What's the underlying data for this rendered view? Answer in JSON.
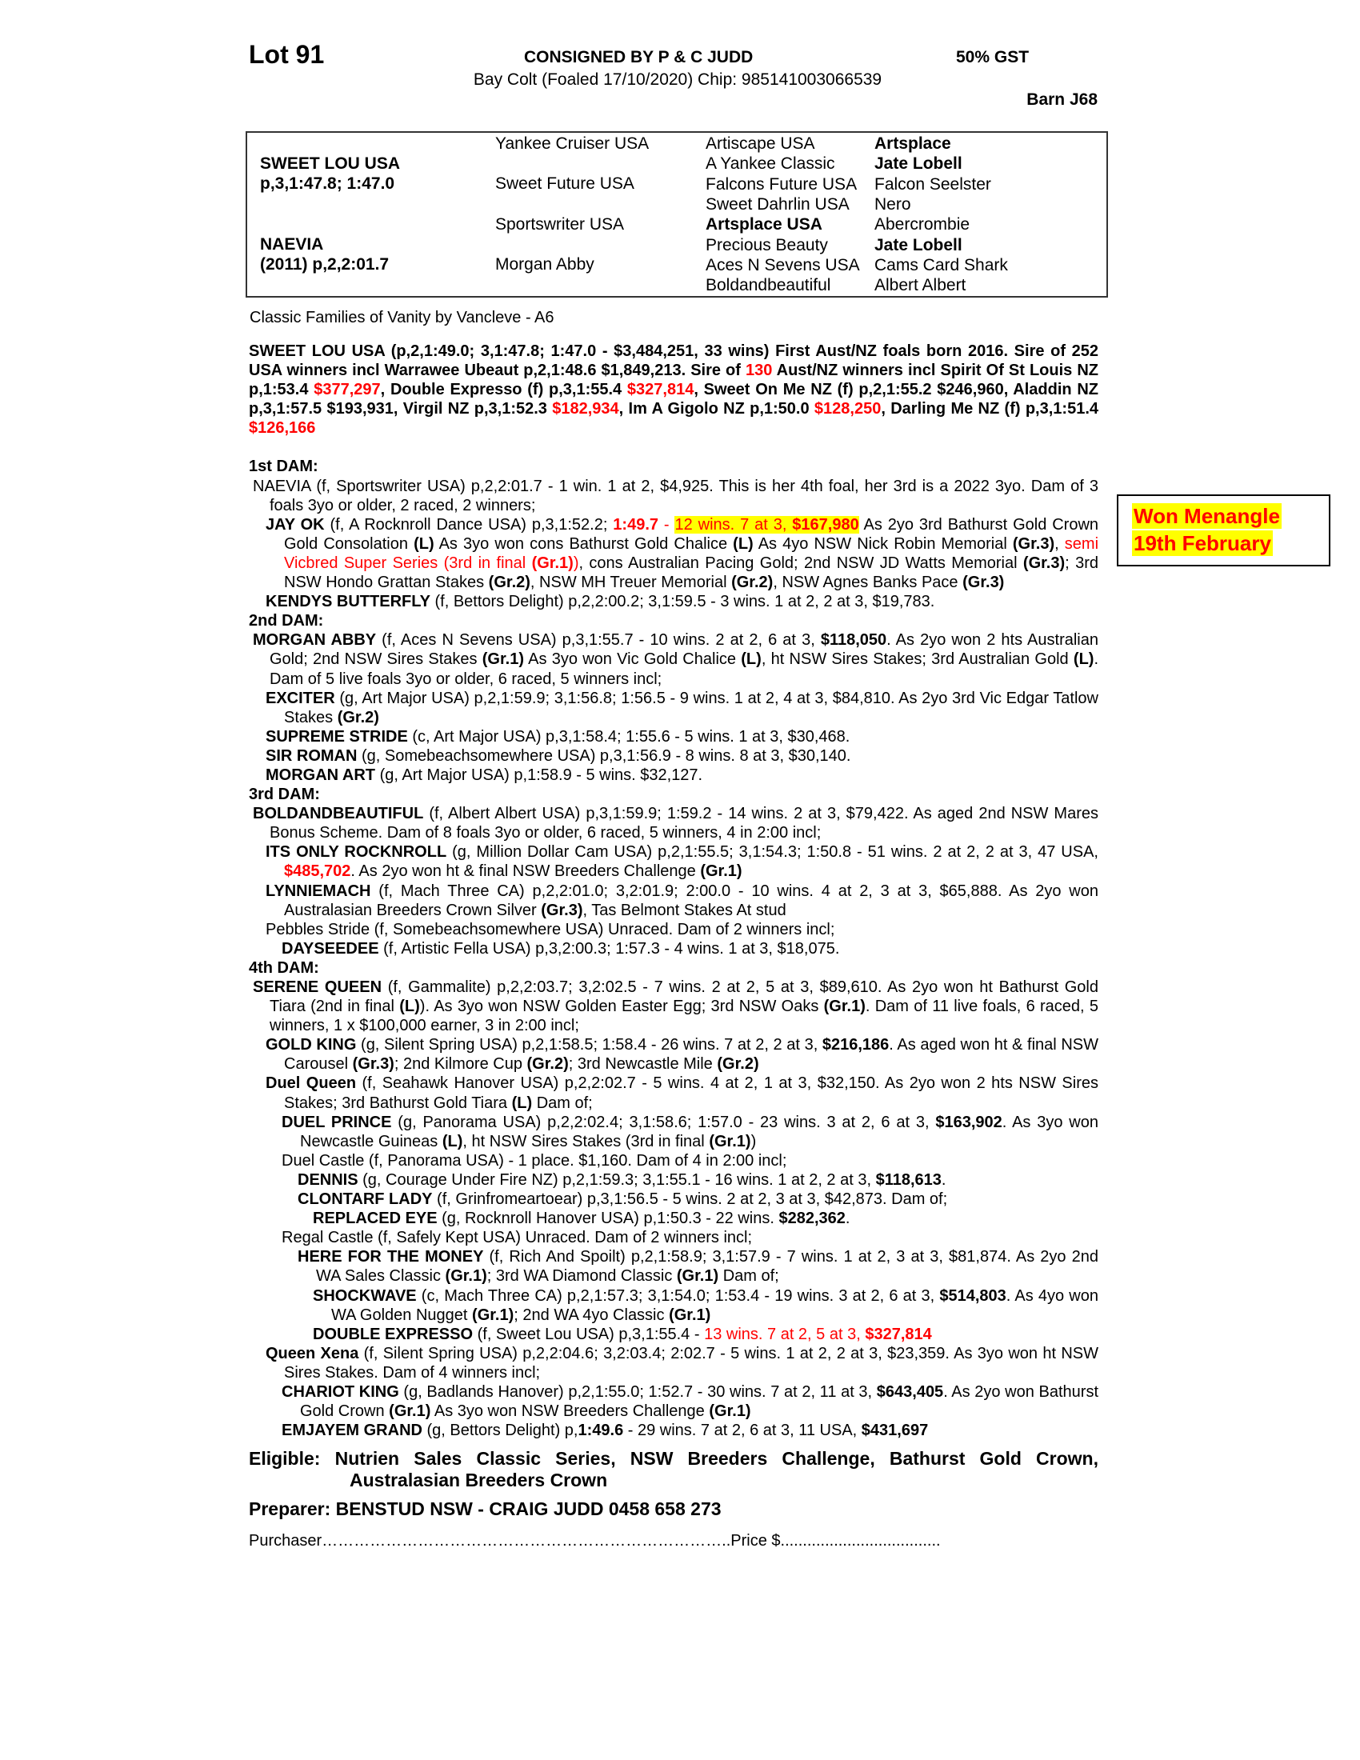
{
  "header": {
    "lot": "Lot 91",
    "consigned": "CONSIGNED BY P & C JUDD",
    "gst": "50% GST",
    "subtitle": "Bay Colt (Foaled 17/10/2020) Chip: 985141003066539",
    "barn": "Barn J68"
  },
  "pedigree": {
    "sire": {
      "name": "SWEET LOU USA",
      "record": "p,3,1:47.8; 1:47.0"
    },
    "dam": {
      "name": "NAEVIA",
      "record": "(2011) p,2,2:01.7"
    },
    "gen2": [
      "Yankee Cruiser USA",
      "Sweet Future USA",
      "Sportswriter USA",
      "Morgan Abby"
    ],
    "gen3": [
      {
        "t": "Artiscape USA",
        "b": false
      },
      {
        "t": "A Yankee Classic",
        "b": false
      },
      {
        "t": "Falcons Future USA",
        "b": false
      },
      {
        "t": "Sweet Dahrlin USA",
        "b": false
      },
      {
        "t": "Artsplace USA",
        "b": true
      },
      {
        "t": "Precious Beauty",
        "b": false
      },
      {
        "t": "Aces N Sevens USA",
        "b": false
      },
      {
        "t": "Boldandbeautiful",
        "b": false
      }
    ],
    "gen4": [
      {
        "t": "Artsplace",
        "b": true
      },
      {
        "t": "Jate Lobell",
        "b": true
      },
      {
        "t": "Falcon Seelster",
        "b": false
      },
      {
        "t": "Nero",
        "b": false
      },
      {
        "t": "Abercrombie",
        "b": false
      },
      {
        "t": "Jate Lobell",
        "b": true
      },
      {
        "t": "Cams Card Shark",
        "b": false
      },
      {
        "t": "Albert Albert",
        "b": false
      }
    ]
  },
  "family": "Classic Families of Vanity by Vancleve - A6",
  "sire_runs": [
    [
      "SWEET LOU USA (p,2,1:49.0; 3,1:47.8; 1:47.0 - $3,484,251, 33 wins) First Aust/NZ foals born 2016. Sire of 252 USA winners incl Warrawee Ubeaut p,2,1:48.6 $1,849,213. Sire of ",
      ""
    ],
    [
      "130",
      "r"
    ],
    [
      " Aust/NZ winners incl Spirit Of St Louis NZ p,1:53.4 ",
      ""
    ],
    [
      "$377,297",
      "r"
    ],
    [
      ", Double Expresso (f) p,3,1:55.4 ",
      ""
    ],
    [
      "$327,814",
      "r"
    ],
    [
      ", Sweet On Me NZ (f) p,2,1:55.2 $246,960, Aladdin NZ p,3,1:57.5 $193,931, Virgil NZ p,3,1:52.3 ",
      ""
    ],
    [
      "$182,934",
      "r"
    ],
    [
      ", Im A Gigolo NZ p,1:50.0 ",
      ""
    ],
    [
      "$128,250",
      "r"
    ],
    [
      ", Darling Me NZ (f) p,3,1:51.4 ",
      ""
    ],
    [
      "$126,166",
      "r"
    ]
  ],
  "dams": [
    {
      "heading": "1st DAM:",
      "entries": [
        {
          "level": 0,
          "runs": [
            [
              "NAEVIA (f, Sportswriter USA) p,2,2:01.7 - 1 win. 1 at 2, $4,925. This is her 4th foal, her 3rd is a 2022 3yo. Dam of 3 foals 3yo or older, 2 raced, 2 winners;",
              ""
            ]
          ]
        },
        {
          "level": 1,
          "runs": [
            [
              "JAY OK",
              "b"
            ],
            [
              " (f, A Rocknroll Dance USA) p,3,1:52.2; ",
              ""
            ],
            [
              "1:49.7",
              "rb"
            ],
            [
              " - ",
              "r"
            ],
            [
              "12 wins. 7 at 3, ",
              "hl"
            ],
            [
              "$167,980",
              "hlb"
            ],
            [
              " As 2yo 3rd Bathurst Gold Crown Gold Consolation ",
              ""
            ],
            [
              "(L)",
              "b"
            ],
            [
              " As 3yo won cons Bathurst Gold Chalice ",
              ""
            ],
            [
              "(L)",
              "b"
            ],
            [
              " As 4yo  NSW Nick Robin Memorial ",
              ""
            ],
            [
              "(Gr.3)",
              "b"
            ],
            [
              ", ",
              ""
            ],
            [
              "semi Vicbred Super Series (3rd in final ",
              "r"
            ],
            [
              "(Gr.1)",
              "rb"
            ],
            [
              ")",
              "r"
            ],
            [
              ", cons Australian Pacing Gold; 2nd NSW JD Watts Memorial ",
              ""
            ],
            [
              "(Gr.3)",
              "b"
            ],
            [
              "; 3rd NSW Hondo Grattan Stakes ",
              ""
            ],
            [
              "(Gr.2)",
              "b"
            ],
            [
              ", NSW MH Treuer Memorial ",
              ""
            ],
            [
              "(Gr.2)",
              "b"
            ],
            [
              ", NSW Agnes Banks Pace ",
              ""
            ],
            [
              "(Gr.3)",
              "b"
            ]
          ]
        },
        {
          "level": 1,
          "runs": [
            [
              "KENDYS BUTTERFLY",
              "b"
            ],
            [
              " (f, Bettors Delight) p,2,2:00.2; 3,1:59.5 - 3 wins. 1 at 2, 2 at 3, $19,783.",
              ""
            ]
          ]
        }
      ]
    },
    {
      "heading": "2nd DAM:",
      "entries": [
        {
          "level": 0,
          "runs": [
            [
              "MORGAN ABBY",
              "b"
            ],
            [
              " (f, Aces N Sevens USA) p,3,1:55.7 - 10 wins. 2 at 2, 6 at 3, ",
              ""
            ],
            [
              "$118,050",
              "b"
            ],
            [
              ". As 2yo won 2 hts Australian Gold; 2nd NSW Sires Stakes ",
              ""
            ],
            [
              "(Gr.1)",
              "b"
            ],
            [
              " As 3yo won Vic Gold Chalice ",
              ""
            ],
            [
              "(L)",
              "b"
            ],
            [
              ", ht NSW Sires Stakes; 3rd Australian Gold ",
              ""
            ],
            [
              "(L)",
              "b"
            ],
            [
              ". Dam of 5 live foals 3yo or older, 6 raced, 5 winners incl;",
              ""
            ]
          ]
        },
        {
          "level": 1,
          "runs": [
            [
              "EXCITER",
              "b"
            ],
            [
              " (g, Art Major USA) p,2,1:59.9; 3,1:56.8; 1:56.5 - 9 wins. 1 at 2, 4 at 3, $84,810. As 2yo 3rd Vic Edgar Tatlow Stakes ",
              ""
            ],
            [
              "(Gr.2)",
              "b"
            ]
          ]
        },
        {
          "level": 1,
          "runs": [
            [
              "SUPREME STRIDE",
              "b"
            ],
            [
              " (c, Art Major USA) p,3,1:58.4; 1:55.6 - 5 wins. 1 at 3, $30,468.",
              ""
            ]
          ]
        },
        {
          "level": 1,
          "runs": [
            [
              "SIR ROMAN",
              "b"
            ],
            [
              " (g, Somebeachsomewhere USA) p,3,1:56.9 - 8 wins. 8 at 3, $30,140.",
              ""
            ]
          ]
        },
        {
          "level": 1,
          "runs": [
            [
              "MORGAN ART",
              "b"
            ],
            [
              " (g, Art Major USA) p,1:58.9 - 5 wins. $32,127.",
              ""
            ]
          ]
        }
      ]
    },
    {
      "heading": "3rd DAM:",
      "entries": [
        {
          "level": 0,
          "runs": [
            [
              "BOLDANDBEAUTIFUL",
              "b"
            ],
            [
              " (f, Albert Albert USA) p,3,1:59.9; 1:59.2 - 14 wins. 2 at 3, $79,422. As aged 2nd NSW Mares Bonus Scheme. Dam of 8 foals 3yo or older, 6 raced, 5 winners, 4 in 2:00 incl;",
              ""
            ]
          ]
        },
        {
          "level": 1,
          "runs": [
            [
              "ITS ONLY ROCKNROLL",
              "b"
            ],
            [
              " (g, Million Dollar Cam USA) p,2,1:55.5; 3,1:54.3; 1:50.8 - 51 wins. 2 at 2, 2 at 3, 47 USA, ",
              ""
            ],
            [
              "$485,702",
              "rb"
            ],
            [
              ". As 2yo won ht & final NSW Breeders Challenge ",
              ""
            ],
            [
              "(Gr.1)",
              "b"
            ]
          ]
        },
        {
          "level": 1,
          "runs": [
            [
              "LYNNIEMACH",
              "b"
            ],
            [
              " (f, Mach Three CA) p,2,2:01.0; 3,2:01.9; 2:00.0 - 10 wins. 4 at 2, 3 at 3, $65,888. As 2yo won Australasian Breeders Crown Silver ",
              ""
            ],
            [
              "(Gr.3)",
              "b"
            ],
            [
              ", Tas Belmont Stakes At stud",
              ""
            ]
          ]
        },
        {
          "level": 1,
          "runs": [
            [
              "Pebbles Stride (f, Somebeachsomewhere USA) Unraced. Dam of 2 winners incl;",
              ""
            ]
          ]
        },
        {
          "level": 2,
          "runs": [
            [
              "DAYSEEDEE",
              "b"
            ],
            [
              " (f, Artistic Fella USA) p,3,2:00.3; 1:57.3 - 4 wins. 1 at 3, $18,075.",
              ""
            ]
          ]
        }
      ]
    },
    {
      "heading": "4th DAM:",
      "entries": [
        {
          "level": 0,
          "runs": [
            [
              "SERENE QUEEN",
              "b"
            ],
            [
              " (f, Gammalite) p,2,2:03.7; 3,2:02.5 - 7 wins. 2 at 2, 5 at 3, $89,610. As 2yo won ht Bathurst Gold Tiara (2nd in final ",
              ""
            ],
            [
              "(L)",
              "b"
            ],
            [
              "). As 3yo won NSW Golden Easter Egg; 3rd NSW Oaks ",
              ""
            ],
            [
              "(Gr.1)",
              "b"
            ],
            [
              ". Dam of 11 live foals, 6 raced, 5 winners, 1 x $100,000 earner, 3 in 2:00 incl;",
              ""
            ]
          ]
        },
        {
          "level": 1,
          "runs": [
            [
              "GOLD KING",
              "b"
            ],
            [
              " (g, Silent Spring USA) p,2,1:58.5; 1:58.4 - 26 wins. 7 at 2, 2 at 3, ",
              ""
            ],
            [
              "$216,186",
              "b"
            ],
            [
              ". As aged won ht & final NSW Carousel ",
              ""
            ],
            [
              "(Gr.3)",
              "b"
            ],
            [
              "; 2nd Kilmore Cup ",
              ""
            ],
            [
              "(Gr.2)",
              "b"
            ],
            [
              "; 3rd Newcastle Mile ",
              ""
            ],
            [
              "(Gr.2)",
              "b"
            ]
          ]
        },
        {
          "level": 1,
          "runs": [
            [
              "Duel Queen",
              "b"
            ],
            [
              " (f, Seahawk Hanover USA) p,2,2:02.7 - 5 wins. 4 at 2, 1 at 3, $32,150. As 2yo won 2 hts NSW Sires Stakes; 3rd Bathurst Gold Tiara ",
              ""
            ],
            [
              "(L)",
              "b"
            ],
            [
              " Dam of;",
              ""
            ]
          ]
        },
        {
          "level": 2,
          "runs": [
            [
              "DUEL PRINCE",
              "b"
            ],
            [
              " (g, Panorama USA) p,2,2:02.4; 3,1:58.6; 1:57.0 - 23 wins. 3 at 2, 6 at 3, ",
              ""
            ],
            [
              "$163,902",
              "b"
            ],
            [
              ". As 3yo won Newcastle Guineas ",
              ""
            ],
            [
              "(L)",
              "b"
            ],
            [
              ", ht NSW Sires Stakes (3rd in final ",
              ""
            ],
            [
              "(Gr.1)",
              "b"
            ],
            [
              ")",
              ""
            ]
          ]
        },
        {
          "level": 2,
          "runs": [
            [
              "Duel Castle (f, Panorama USA) - 1 place. $1,160. Dam of 4 in 2:00 incl;",
              ""
            ]
          ]
        },
        {
          "level": 3,
          "runs": [
            [
              "DENNIS",
              "b"
            ],
            [
              " (g, Courage Under Fire NZ) p,2,1:59.3; 3,1:55.1 - 16 wins. 1 at 2, 2 at 3, ",
              ""
            ],
            [
              "$118,613",
              "b"
            ],
            [
              ".",
              ""
            ]
          ]
        },
        {
          "level": 3,
          "runs": [
            [
              "CLONTARF LADY",
              "b"
            ],
            [
              " (f, Grinfromeartoear) p,3,1:56.5 - 5 wins. 2 at 2, 3 at 3, $42,873. Dam of;",
              ""
            ]
          ]
        },
        {
          "level": 4,
          "runs": [
            [
              "REPLACED EYE",
              "b"
            ],
            [
              " (g, Rocknroll Hanover USA) p,1:50.3 - 22 wins. ",
              ""
            ],
            [
              "$282,362",
              "b"
            ],
            [
              ".",
              ""
            ]
          ]
        },
        {
          "level": 2,
          "runs": [
            [
              "Regal Castle (f, Safely Kept USA) Unraced. Dam of 2 winners incl;",
              ""
            ]
          ]
        },
        {
          "level": 3,
          "runs": [
            [
              "HERE FOR THE MONEY",
              "b"
            ],
            [
              " (f, Rich And Spoilt) p,2,1:58.9; 3,1:57.9 - 7 wins. 1 at 2, 3 at 3, $81,874. As 2yo 2nd WA Sales Classic ",
              ""
            ],
            [
              "(Gr.1)",
              "b"
            ],
            [
              "; 3rd WA Diamond Classic ",
              ""
            ],
            [
              "(Gr.1)",
              "b"
            ],
            [
              " Dam of;",
              ""
            ]
          ]
        },
        {
          "level": 4,
          "runs": [
            [
              "SHOCKWAVE",
              "b"
            ],
            [
              " (c, Mach Three CA) p,2,1:57.3; 3,1:54.0; 1:53.4 - 19 wins. 3 at 2, 6 at 3, ",
              ""
            ],
            [
              "$514,803",
              "b"
            ],
            [
              ". As 4yo won WA Golden Nugget ",
              ""
            ],
            [
              "(Gr.1)",
              "b"
            ],
            [
              "; 2nd WA 4yo Classic ",
              ""
            ],
            [
              "(Gr.1)",
              "b"
            ]
          ]
        },
        {
          "level": 4,
          "runs": [
            [
              "DOUBLE EXPRESSO",
              "b"
            ],
            [
              " (f, Sweet Lou USA) p,3,1:55.4 - ",
              ""
            ],
            [
              "13 wins. 7 at 2, 5 at 3, ",
              "r"
            ],
            [
              "$327,814",
              "rb"
            ]
          ]
        },
        {
          "level": 1,
          "runs": [
            [
              "Queen Xena",
              "b"
            ],
            [
              " (f, Silent Spring USA) p,2,2:04.6; 3,2:03.4; 2:02.7 - 5 wins. 1 at 2, 2 at 3, $23,359. As 3yo won ht NSW Sires Stakes. Dam of 4 winners incl;",
              ""
            ]
          ]
        },
        {
          "level": 2,
          "runs": [
            [
              "CHARIOT KING",
              "b"
            ],
            [
              " (g, Badlands Hanover) p,2,1:55.0; 1:52.7 - 30 wins. 7 at 2, 11 at 3, ",
              ""
            ],
            [
              "$643,405",
              "b"
            ],
            [
              ". As 2yo won Bathurst Gold Crown ",
              ""
            ],
            [
              "(Gr.1)",
              "b"
            ],
            [
              " As 3yo won NSW Breeders Challenge ",
              ""
            ],
            [
              "(Gr.1)",
              "b"
            ]
          ]
        },
        {
          "level": 2,
          "runs": [
            [
              "EMJAYEM GRAND",
              "b"
            ],
            [
              " (g, Bettors Delight) p,",
              ""
            ],
            [
              "1:49.6",
              "b"
            ],
            [
              " - 29 wins. 7 at 2, 6 at 3, 11 USA, ",
              ""
            ],
            [
              "$431,697",
              "b"
            ]
          ]
        }
      ]
    }
  ],
  "eligible": "Eligible: Nutrien Sales Classic Series, NSW Breeders Challenge, Bathurst Gold Crown, Australasian Breeders Crown",
  "preparer": "Preparer: BENSTUD NSW - CRAIG JUDD 0458 658 273",
  "purchaser": "Purchaser…………………………………………………………………..Price $....................................",
  "note": [
    "Won Menangle",
    "19th February"
  ],
  "colors": {
    "red": "#ff0000",
    "highlight": "#ffff00"
  }
}
